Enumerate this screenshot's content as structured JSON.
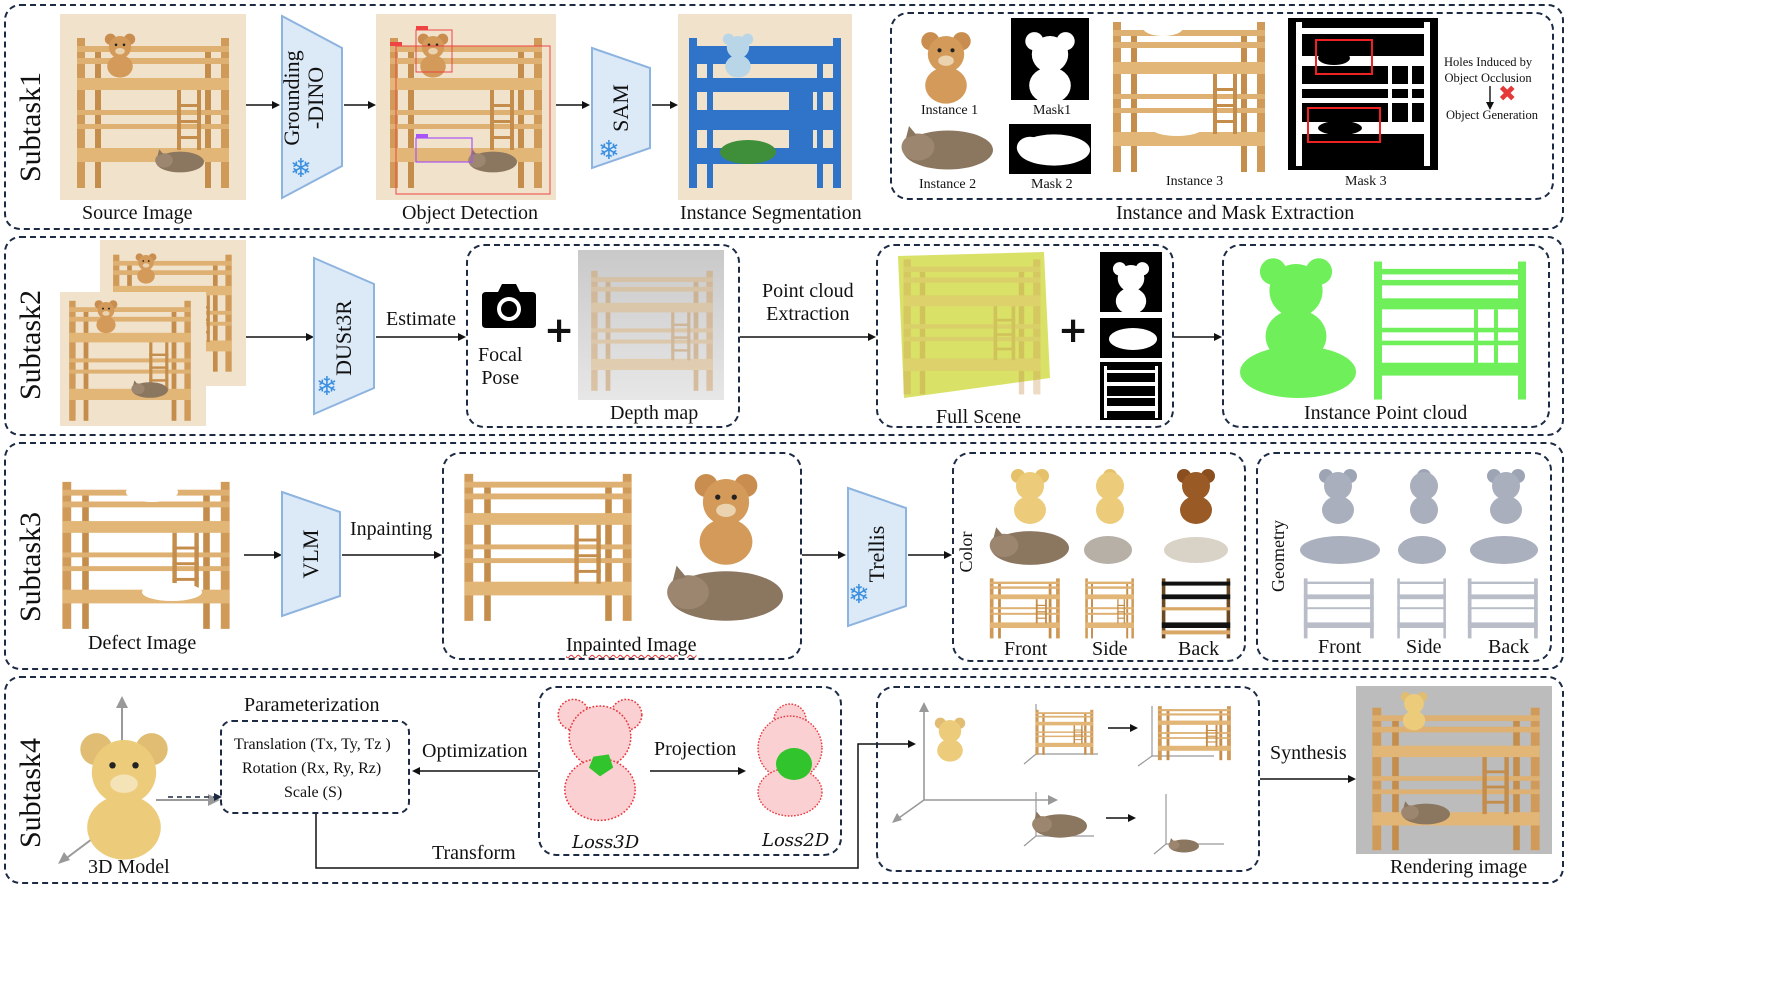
{
  "rows": {
    "subtask1": "Subtask1",
    "subtask2": "Subtask2",
    "subtask3": "Subtask3",
    "subtask4": "Subtask4"
  },
  "s1": {
    "source_image": "Source Image",
    "grounding_dino": "Grounding\n-DINO",
    "object_detection": "Object Detection",
    "sam": "SAM",
    "instance_segmentation": "Instance Segmentation",
    "instance1": "Instance 1",
    "mask1": "Mask1",
    "instance2": "Instance 2",
    "mask2": "Mask 2",
    "instance3": "Instance 3",
    "mask3": "Mask 3",
    "holes_note": "Holes Induced by\nObject Occlusion",
    "object_generation": "Object Generation",
    "extraction_title": "Instance and Mask Extraction"
  },
  "s2": {
    "dust3r": "DUSt3R",
    "estimate": "Estimate",
    "focal_pose": "Focal\nPose",
    "plus": "+",
    "depth_map": "Depth map",
    "pc_extraction": "Point cloud\nExtraction",
    "full_scene": "Full Scene",
    "instance_pc": "Instance Point cloud"
  },
  "s3": {
    "defect_image": "Defect Image",
    "vlm": "VLM",
    "inpainting": "Inpainting",
    "inpainted_image": "Inpainted Image",
    "trellis": "Trellis",
    "color": "Color",
    "geometry": "Geometry",
    "views": [
      "Front",
      "Side",
      "Back"
    ]
  },
  "s4": {
    "model_3d": "3D Model",
    "parameterization": "Parameterization",
    "translation": "Translation (Tx, Ty, Tz )",
    "rotation": "Rotation (Rx, Ry, Rz)",
    "scale": "Scale (S)",
    "optimization": "Optimization",
    "projection": "Projection",
    "loss3d": "Loss3D",
    "loss2d": "Loss2D",
    "transform": "Transform",
    "synthesis": "Synthesis",
    "rendering": "Rendering image"
  },
  "colors": {
    "frame": "#1c2a44",
    "encoder_fill": "#dce9f7",
    "encoder_stroke": "#8db3df",
    "wood": "#d9a866",
    "wood_dark": "#b7823f",
    "beige": "#f1e2cc",
    "sam_blue": "#2f74c8",
    "pc_yellow": "#d5de55",
    "pc_green": "#6ff05a",
    "loss_red": "#e8383f",
    "snow_blue": "#3a8fe0",
    "x_red": "#e53a3a"
  }
}
